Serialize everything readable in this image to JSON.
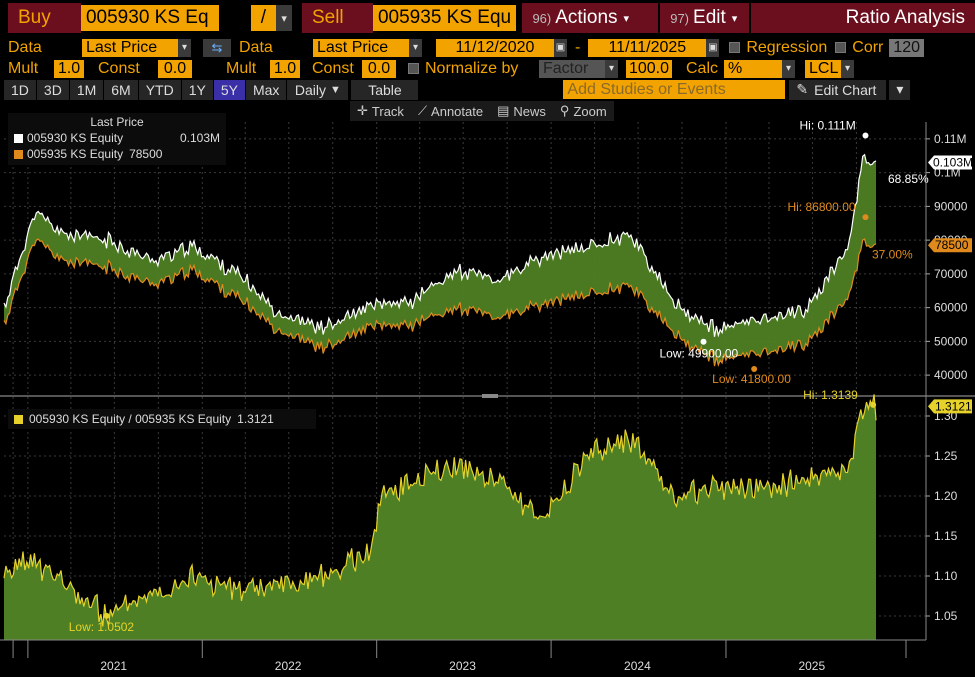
{
  "header": {
    "buy_label": "Buy",
    "buy_ticker": "005930 KS Eq",
    "op": "/",
    "sell_label": "Sell",
    "sell_ticker": "005935 KS Equ",
    "actions_num": "96)",
    "actions_label": "Actions",
    "edit_num": "97)",
    "edit_label": "Edit",
    "title": "Ratio Analysis"
  },
  "row2": {
    "data_label1": "Data",
    "data_value1": "Last Price",
    "data_label2": "Data",
    "data_value2": "Last Price",
    "date_from": "11/12/2020",
    "dash": "-",
    "date_to": "11/11/2025",
    "regression": "Regression",
    "corr": "Corr",
    "corr_value": "120"
  },
  "row3": {
    "mult1": "Mult",
    "mult1_value": "1.0",
    "const1": "Const",
    "const1_value": "0.0",
    "mult2": "Mult",
    "mult2_value": "1.0",
    "const2": "Const",
    "const2_value": "0.0",
    "normalize": "Normalize by",
    "normalize_value": "Factor",
    "normalize_num": "100.0",
    "calc": "Calc",
    "calc_value": "%",
    "lcl": "LCL"
  },
  "row4": {
    "periods": [
      "1D",
      "3D",
      "1M",
      "6M",
      "YTD",
      "1Y",
      "5Y",
      "Max"
    ],
    "selected": "5Y",
    "daily": "Daily",
    "table": "Table",
    "studies_placeholder": "Add Studies or Events",
    "edit_chart": "Edit Chart"
  },
  "mini_toolbar": [
    "Track",
    "Annotate",
    "News",
    "Zoom"
  ],
  "colors": {
    "series_a": "#ffffff",
    "series_b": "#e08a1e",
    "ratio": "#e6d22a",
    "fill": "#4e7f24",
    "accent": "#f3a300"
  },
  "chart_data": [
    {
      "type": "line",
      "title": "",
      "legend_title": "Last Price",
      "legend_position": "top-left",
      "x": [
        "2020-11-12",
        "2021-01",
        "2021-03",
        "2021-06",
        "2021-09",
        "2021-12",
        "2022-03",
        "2022-06",
        "2022-09",
        "2022-12",
        "2023-03",
        "2023-06",
        "2023-09",
        "2023-12",
        "2024-03",
        "2024-06",
        "2024-09",
        "2024-12",
        "2025-03",
        "2025-06",
        "2025-09",
        "2025-10",
        "2025-11-11"
      ],
      "series": [
        {
          "name": "005930 KS Equity",
          "last": "0.103M",
          "values": [
            60000,
            88000,
            82000,
            80000,
            74000,
            78000,
            70000,
            58000,
            54000,
            60000,
            62000,
            71000,
            68000,
            75000,
            78000,
            82000,
            61000,
            53000,
            57000,
            59000,
            78000,
            105000,
            103000
          ]
        },
        {
          "name": "005935 KS Equity",
          "last": "78500",
          "values": [
            55000,
            80000,
            74000,
            72000,
            67000,
            71000,
            63000,
            53000,
            48000,
            54000,
            55000,
            60000,
            57000,
            61000,
            64000,
            67000,
            52000,
            44000,
            47000,
            49000,
            63000,
            80000,
            78500
          ]
        }
      ],
      "ylim": [
        35000,
        115000
      ],
      "y_ticks": [
        "40000",
        "50000",
        "60000",
        "70000",
        "80000",
        "90000",
        "0.1M",
        "0.11M"
      ],
      "annotations": {
        "hi_a": "Hi: 0.111M",
        "low_a": "Low: 49900.00",
        "hi_b": "Hi: 86800.00",
        "low_b": "Low: 41800.00",
        "pct_a": "68.85%",
        "pct_b": "37.00%",
        "last_a": "0.103M",
        "last_b": "78500"
      }
    },
    {
      "type": "area",
      "legend_position": "top-left",
      "x": [
        "2020-11-12",
        "2021-01",
        "2021-03",
        "2021-06",
        "2021-09",
        "2021-12",
        "2022-03",
        "2022-06",
        "2022-09",
        "2022-12",
        "2023-01",
        "2023-03",
        "2023-06",
        "2023-09",
        "2023-12",
        "2024-03",
        "2024-06",
        "2024-09",
        "2024-12",
        "2025-03",
        "2025-06",
        "2025-09",
        "2025-10",
        "2025-11-11"
      ],
      "series": [
        {
          "name": "005930 KS Equity / 005935 KS Equity",
          "last": "1.3121",
          "values": [
            1.1,
            1.12,
            1.09,
            1.05,
            1.08,
            1.1,
            1.08,
            1.09,
            1.1,
            1.13,
            1.2,
            1.22,
            1.24,
            1.22,
            1.17,
            1.25,
            1.27,
            1.2,
            1.21,
            1.21,
            1.22,
            1.23,
            1.31,
            1.3121
          ]
        }
      ],
      "ylim": [
        1.02,
        1.32
      ],
      "y_ticks": [
        "1.05",
        "1.10",
        "1.15",
        "1.20",
        "1.25",
        "1.30"
      ],
      "annotations": {
        "hi": "Hi: 1.3139",
        "low": "Low: 1.0502",
        "last": "1.3121"
      }
    }
  ],
  "x_axis_years": [
    "2021",
    "2022",
    "2023",
    "2024",
    "2025"
  ]
}
